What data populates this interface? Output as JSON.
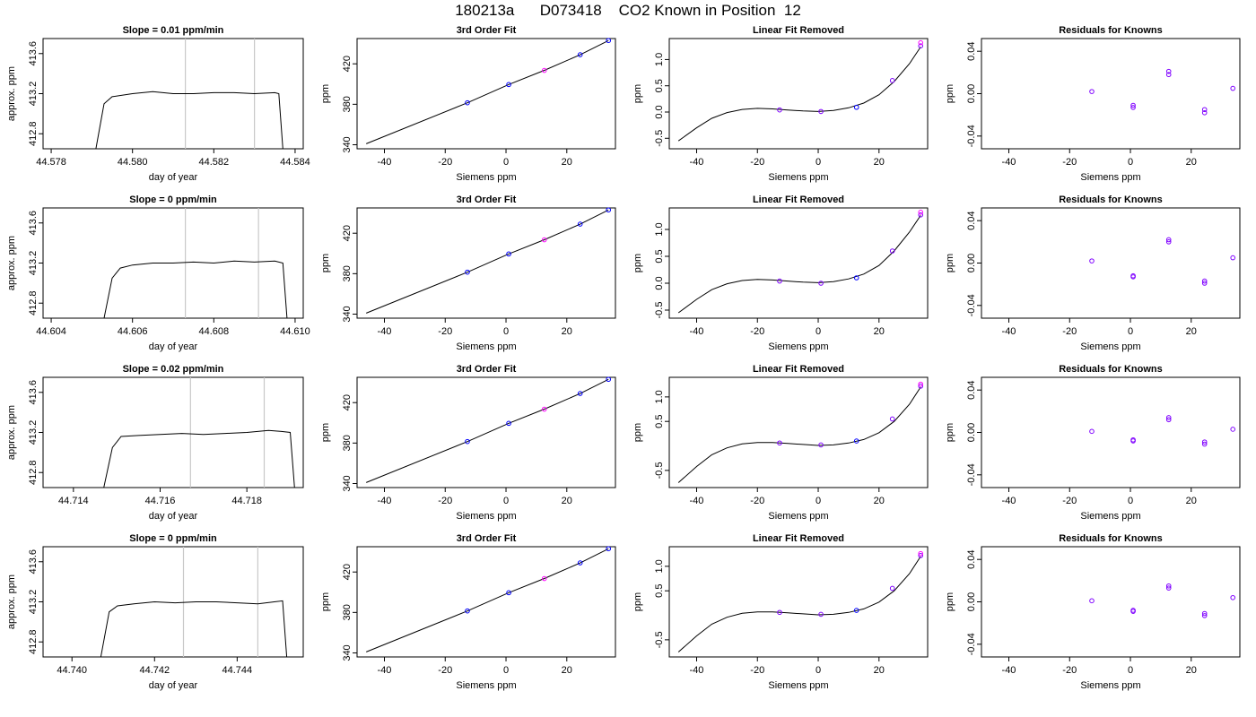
{
  "title": "180213a      D073418    CO2 Known in Position  12",
  "colors": {
    "trace": "#000000",
    "vline": "#c8c8c8",
    "pt_blue": "#0000ff",
    "pt_violet": "#ff00ff",
    "pt_purple": "#7f00ff"
  },
  "chart_data": [
    {
      "type": "line",
      "title": "Slope =  0.01  ppm/min",
      "xlabel": "day of year",
      "ylabel": "approx. ppm",
      "xlim": [
        44.5778,
        44.5842
      ],
      "ylim": [
        412.65,
        413.75
      ],
      "xticks": [
        44.578,
        44.58,
        44.582,
        44.584
      ],
      "xtick_labels": [
        "44.578",
        "44.580",
        "44.582",
        "44.584"
      ],
      "yticks": [
        412.8,
        413.2,
        413.6
      ],
      "ytick_labels": [
        "412.8",
        "413.2",
        "413.6"
      ],
      "vlines": [
        44.5813,
        44.583
      ],
      "x": [
        44.5791,
        44.5793,
        44.5795,
        44.58,
        44.5805,
        44.581,
        44.5815,
        44.582,
        44.5825,
        44.583,
        44.5835,
        44.5836,
        44.5837
      ],
      "y": [
        412.65,
        413.1,
        413.17,
        413.2,
        413.22,
        413.2,
        413.2,
        413.21,
        413.21,
        413.2,
        413.21,
        413.2,
        412.65
      ]
    },
    {
      "type": "line",
      "title": "3rd Order Fit",
      "xlabel": "Siemens ppm",
      "ylabel": "ppm",
      "xlim": [
        -49,
        36
      ],
      "ylim": [
        336,
        445
      ],
      "xticks": [
        -40,
        -20,
        0,
        20
      ],
      "yticks": [
        340,
        380,
        420
      ],
      "x": [
        -46,
        -12.7,
        0.9,
        12.6,
        24.4,
        33.7
      ],
      "y": [
        341,
        381.5,
        399.5,
        413.5,
        429,
        443
      ],
      "points": [
        {
          "x": -12.7,
          "y": 381.5,
          "c": "b"
        },
        {
          "x": 0.9,
          "y": 399.5,
          "c": "b"
        },
        {
          "x": 12.6,
          "y": 413.5,
          "c": "v"
        },
        {
          "x": 24.4,
          "y": 429,
          "c": "b"
        },
        {
          "x": 33.7,
          "y": 443,
          "c": "b"
        }
      ]
    },
    {
      "type": "line",
      "title": "Linear Fit Removed",
      "xlabel": "Siemens ppm",
      "ylabel": "ppm",
      "xlim": [
        -49,
        36
      ],
      "ylim": [
        -0.7,
        1.4
      ],
      "xticks": [
        -40,
        -20,
        0,
        20
      ],
      "yticks": [
        -0.5,
        0,
        0.5,
        1
      ],
      "ytick_labels": [
        "-0.5",
        "0.0",
        "0.5",
        "1.0"
      ],
      "x": [
        -46,
        -40,
        -35,
        -30,
        -25,
        -20,
        -15,
        -10,
        -5,
        0,
        5,
        10,
        15,
        20,
        25,
        30,
        33.7
      ],
      "y": [
        -0.55,
        -0.3,
        -0.12,
        -0.01,
        0.05,
        0.07,
        0.06,
        0.04,
        0.02,
        0.01,
        0.03,
        0.08,
        0.17,
        0.33,
        0.58,
        0.92,
        1.24
      ],
      "points": [
        {
          "x": -12.7,
          "y": 0.04,
          "c": "p"
        },
        {
          "x": 0.9,
          "y": 0.01,
          "c": "p"
        },
        {
          "x": 12.6,
          "y": 0.09,
          "c": "b"
        },
        {
          "x": 24.4,
          "y": 0.6,
          "c": "p"
        },
        {
          "x": 33.7,
          "y": 1.26,
          "c": "p"
        },
        {
          "x": 33.7,
          "y": 1.32,
          "c": "v"
        }
      ]
    },
    {
      "type": "scatter",
      "title": "Residuals for Knowns",
      "xlabel": "Siemens ppm",
      "ylabel": "ppm",
      "xlim": [
        -49,
        36
      ],
      "ylim": [
        -0.052,
        0.052
      ],
      "xticks": [
        -40,
        -20,
        0,
        20
      ],
      "yticks": [
        -0.04,
        0,
        0.04
      ],
      "ytick_labels": [
        "-0.04",
        "0.00",
        "0.04"
      ],
      "points": [
        {
          "x": -12.7,
          "y": 0.002,
          "c": "p"
        },
        {
          "x": 0.9,
          "y": -0.011,
          "c": "p"
        },
        {
          "x": 0.9,
          "y": -0.013,
          "c": "p"
        },
        {
          "x": 12.6,
          "y": 0.018,
          "c": "p"
        },
        {
          "x": 12.6,
          "y": 0.021,
          "c": "p"
        },
        {
          "x": 24.4,
          "y": -0.015,
          "c": "p"
        },
        {
          "x": 24.4,
          "y": -0.018,
          "c": "p"
        },
        {
          "x": 33.7,
          "y": 0.005,
          "c": "p"
        }
      ]
    },
    {
      "type": "line",
      "title": "Slope =  0  ppm/min",
      "xlabel": "day of year",
      "ylabel": "approx. ppm",
      "xlim": [
        44.6038,
        44.6102
      ],
      "ylim": [
        412.65,
        413.75
      ],
      "xticks": [
        44.604,
        44.606,
        44.608,
        44.61
      ],
      "xtick_labels": [
        "44.604",
        "44.606",
        "44.608",
        "44.610"
      ],
      "yticks": [
        412.8,
        413.2,
        413.6
      ],
      "ytick_labels": [
        "412.8",
        "413.2",
        "413.6"
      ],
      "vlines": [
        44.6073,
        44.6091
      ],
      "x": [
        44.6053,
        44.6055,
        44.6057,
        44.606,
        44.6065,
        44.607,
        44.6075,
        44.608,
        44.6085,
        44.609,
        44.6095,
        44.6097,
        44.6098
      ],
      "y": [
        412.65,
        413.05,
        413.15,
        413.18,
        413.2,
        413.2,
        413.21,
        413.2,
        413.22,
        413.21,
        413.22,
        413.2,
        412.65
      ]
    },
    {
      "type": "line",
      "title": "3rd Order Fit",
      "xlabel": "Siemens ppm",
      "ylabel": "ppm",
      "xlim": [
        -49,
        36
      ],
      "ylim": [
        336,
        445
      ],
      "xticks": [
        -40,
        -20,
        0,
        20
      ],
      "yticks": [
        340,
        380,
        420
      ],
      "x": [
        -46,
        -12.7,
        0.9,
        12.6,
        24.4,
        33.7
      ],
      "y": [
        341,
        381.5,
        399.5,
        413.5,
        429,
        443
      ],
      "points": [
        {
          "x": -12.7,
          "y": 381.5,
          "c": "b"
        },
        {
          "x": 0.9,
          "y": 399.5,
          "c": "b"
        },
        {
          "x": 12.6,
          "y": 413.5,
          "c": "v"
        },
        {
          "x": 24.4,
          "y": 429,
          "c": "b"
        },
        {
          "x": 33.7,
          "y": 443,
          "c": "b"
        }
      ]
    },
    {
      "type": "line",
      "title": "Linear Fit Removed",
      "xlabel": "Siemens ppm",
      "ylabel": "ppm",
      "xlim": [
        -49,
        36
      ],
      "ylim": [
        -0.65,
        1.4
      ],
      "xticks": [
        -40,
        -20,
        0,
        20
      ],
      "yticks": [
        -0.5,
        0,
        0.5,
        1
      ],
      "ytick_labels": [
        "-0.5",
        "0.0",
        "0.5",
        "1.0"
      ],
      "x": [
        -46,
        -40,
        -35,
        -30,
        -25,
        -20,
        -15,
        -10,
        -5,
        0,
        5,
        10,
        15,
        20,
        25,
        30,
        33.7
      ],
      "y": [
        -0.55,
        -0.3,
        -0.12,
        -0.01,
        0.05,
        0.07,
        0.06,
        0.04,
        0.02,
        0.01,
        0.03,
        0.08,
        0.17,
        0.33,
        0.6,
        0.95,
        1.26
      ],
      "points": [
        {
          "x": -12.7,
          "y": 0.04,
          "c": "p"
        },
        {
          "x": 0.9,
          "y": 0.0,
          "c": "p"
        },
        {
          "x": 12.6,
          "y": 0.1,
          "c": "b"
        },
        {
          "x": 24.4,
          "y": 0.6,
          "c": "p"
        },
        {
          "x": 33.7,
          "y": 1.27,
          "c": "p"
        },
        {
          "x": 33.7,
          "y": 1.32,
          "c": "v"
        }
      ]
    },
    {
      "type": "scatter",
      "title": "Residuals for Knowns",
      "xlabel": "Siemens ppm",
      "ylabel": "ppm",
      "xlim": [
        -49,
        36
      ],
      "ylim": [
        -0.052,
        0.052
      ],
      "xticks": [
        -40,
        -20,
        0,
        20
      ],
      "yticks": [
        -0.04,
        0,
        0.04
      ],
      "ytick_labels": [
        "-0.04",
        "0.00",
        "0.04"
      ],
      "points": [
        {
          "x": -12.7,
          "y": 0.002,
          "c": "p"
        },
        {
          "x": 0.9,
          "y": -0.012,
          "c": "p"
        },
        {
          "x": 0.9,
          "y": -0.013,
          "c": "p"
        },
        {
          "x": 12.6,
          "y": 0.02,
          "c": "p"
        },
        {
          "x": 12.6,
          "y": 0.022,
          "c": "p"
        },
        {
          "x": 24.4,
          "y": -0.017,
          "c": "p"
        },
        {
          "x": 24.4,
          "y": -0.019,
          "c": "p"
        },
        {
          "x": 33.7,
          "y": 0.005,
          "c": "p"
        }
      ]
    },
    {
      "type": "line",
      "title": "Slope =  0.02  ppm/min",
      "xlabel": "day of year",
      "ylabel": "approx. ppm",
      "xlim": [
        44.7133,
        44.7193
      ],
      "ylim": [
        412.65,
        413.75
      ],
      "xticks": [
        44.714,
        44.716,
        44.718
      ],
      "xtick_labels": [
        "44.714",
        "44.716",
        "44.718"
      ],
      "yticks": [
        412.8,
        413.2,
        413.6
      ],
      "ytick_labels": [
        "412.8",
        "413.2",
        "413.6"
      ],
      "vlines": [
        44.7167,
        44.7184
      ],
      "x": [
        44.7147,
        44.7149,
        44.7151,
        44.7155,
        44.716,
        44.7165,
        44.717,
        44.7175,
        44.718,
        44.7185,
        44.7188,
        44.719,
        44.7191
      ],
      "y": [
        412.65,
        413.05,
        413.16,
        413.17,
        413.18,
        413.19,
        413.18,
        413.19,
        413.2,
        413.22,
        413.21,
        413.2,
        412.65
      ]
    },
    {
      "type": "line",
      "title": "3rd Order Fit",
      "xlabel": "Siemens ppm",
      "ylabel": "ppm",
      "xlim": [
        -49,
        36
      ],
      "ylim": [
        336,
        445
      ],
      "xticks": [
        -40,
        -20,
        0,
        20
      ],
      "yticks": [
        340,
        380,
        420
      ],
      "x": [
        -46,
        -12.7,
        0.9,
        12.6,
        24.4,
        33.7
      ],
      "y": [
        341,
        381.5,
        399.5,
        413.5,
        429,
        443
      ],
      "points": [
        {
          "x": -12.7,
          "y": 381.5,
          "c": "b"
        },
        {
          "x": 0.9,
          "y": 399.5,
          "c": "b"
        },
        {
          "x": 12.6,
          "y": 413.5,
          "c": "v"
        },
        {
          "x": 24.4,
          "y": 429,
          "c": "b"
        },
        {
          "x": 33.7,
          "y": 443,
          "c": "b"
        }
      ]
    },
    {
      "type": "line",
      "title": "Linear Fit Removed",
      "xlabel": "Siemens ppm",
      "ylabel": "ppm",
      "xlim": [
        -49,
        36
      ],
      "ylim": [
        -0.85,
        1.4
      ],
      "xticks": [
        -40,
        -20,
        0,
        20
      ],
      "yticks": [
        -0.5,
        0.5,
        1
      ],
      "ytick_labels": [
        "-0.5",
        "0.5",
        "1.0"
      ],
      "x": [
        -46,
        -40,
        -35,
        -30,
        -25,
        -20,
        -15,
        -10,
        -5,
        0,
        5,
        10,
        15,
        20,
        25,
        30,
        33.7
      ],
      "y": [
        -0.75,
        -0.42,
        -0.18,
        -0.04,
        0.04,
        0.07,
        0.07,
        0.05,
        0.03,
        0.01,
        0.02,
        0.06,
        0.13,
        0.27,
        0.5,
        0.85,
        1.2
      ],
      "points": [
        {
          "x": -12.7,
          "y": 0.06,
          "c": "p"
        },
        {
          "x": 0.9,
          "y": 0.02,
          "c": "p"
        },
        {
          "x": 12.6,
          "y": 0.1,
          "c": "b"
        },
        {
          "x": 24.4,
          "y": 0.55,
          "c": "p"
        },
        {
          "x": 33.7,
          "y": 1.22,
          "c": "p"
        },
        {
          "x": 33.7,
          "y": 1.26,
          "c": "v"
        }
      ]
    },
    {
      "type": "scatter",
      "title": "Residuals for Knowns",
      "xlabel": "Siemens ppm",
      "ylabel": "ppm",
      "xlim": [
        -49,
        36
      ],
      "ylim": [
        -0.052,
        0.052
      ],
      "xticks": [
        -40,
        -20,
        0,
        20
      ],
      "yticks": [
        -0.04,
        0,
        0.04
      ],
      "ytick_labels": [
        "-0.04",
        "0.00",
        "0.04"
      ],
      "points": [
        {
          "x": -12.7,
          "y": 0.001,
          "c": "p"
        },
        {
          "x": 0.9,
          "y": -0.007,
          "c": "p"
        },
        {
          "x": 0.9,
          "y": -0.008,
          "c": "p"
        },
        {
          "x": 12.6,
          "y": 0.012,
          "c": "p"
        },
        {
          "x": 12.6,
          "y": 0.014,
          "c": "p"
        },
        {
          "x": 24.4,
          "y": -0.009,
          "c": "p"
        },
        {
          "x": 24.4,
          "y": -0.011,
          "c": "p"
        },
        {
          "x": 33.7,
          "y": 0.003,
          "c": "p"
        }
      ]
    },
    {
      "type": "line",
      "title": "Slope =  0  ppm/min",
      "xlabel": "day of year",
      "ylabel": "approx. ppm",
      "xlim": [
        44.7393,
        44.7456
      ],
      "ylim": [
        412.65,
        413.75
      ],
      "xticks": [
        44.74,
        44.742,
        44.744
      ],
      "xtick_labels": [
        "44.740",
        "44.742",
        "44.744"
      ],
      "yticks": [
        412.8,
        413.2,
        413.6
      ],
      "ytick_labels": [
        "412.8",
        "413.2",
        "413.6"
      ],
      "vlines": [
        44.7427,
        44.7445
      ],
      "x": [
        44.7407,
        44.7409,
        44.7411,
        44.7415,
        44.742,
        44.7425,
        44.743,
        44.7435,
        44.744,
        44.7445,
        44.7449,
        44.7451,
        44.7452
      ],
      "y": [
        412.65,
        413.1,
        413.16,
        413.18,
        413.2,
        413.19,
        413.2,
        413.2,
        413.19,
        413.18,
        413.2,
        413.21,
        412.65
      ]
    },
    {
      "type": "line",
      "title": "3rd Order Fit",
      "xlabel": "Siemens ppm",
      "ylabel": "ppm",
      "xlim": [
        -49,
        36
      ],
      "ylim": [
        336,
        445
      ],
      "xticks": [
        -40,
        -20,
        0,
        20
      ],
      "yticks": [
        340,
        380,
        420
      ],
      "x": [
        -46,
        -12.7,
        0.9,
        12.6,
        24.4,
        33.7
      ],
      "y": [
        341,
        381.5,
        399.5,
        413.5,
        429,
        443
      ],
      "points": [
        {
          "x": -12.7,
          "y": 381.5,
          "c": "b"
        },
        {
          "x": 0.9,
          "y": 399.5,
          "c": "b"
        },
        {
          "x": 12.6,
          "y": 413.5,
          "c": "v"
        },
        {
          "x": 24.4,
          "y": 429,
          "c": "b"
        },
        {
          "x": 33.7,
          "y": 443,
          "c": "b"
        }
      ]
    },
    {
      "type": "line",
      "title": "Linear Fit Removed",
      "xlabel": "Siemens ppm",
      "ylabel": "ppm",
      "xlim": [
        -49,
        36
      ],
      "ylim": [
        -0.85,
        1.4
      ],
      "xticks": [
        -40,
        -20,
        0,
        20
      ],
      "yticks": [
        -0.5,
        0.5,
        1
      ],
      "ytick_labels": [
        "-0.5",
        "0.5",
        "1.0"
      ],
      "x": [
        -46,
        -40,
        -35,
        -30,
        -25,
        -20,
        -15,
        -10,
        -5,
        0,
        5,
        10,
        15,
        20,
        25,
        30,
        33.7
      ],
      "y": [
        -0.75,
        -0.42,
        -0.18,
        -0.04,
        0.04,
        0.07,
        0.07,
        0.05,
        0.03,
        0.01,
        0.02,
        0.06,
        0.13,
        0.27,
        0.5,
        0.85,
        1.2
      ],
      "points": [
        {
          "x": -12.7,
          "y": 0.06,
          "c": "p"
        },
        {
          "x": 0.9,
          "y": 0.02,
          "c": "p"
        },
        {
          "x": 12.6,
          "y": 0.1,
          "c": "b"
        },
        {
          "x": 24.4,
          "y": 0.55,
          "c": "p"
        },
        {
          "x": 33.7,
          "y": 1.22,
          "c": "p"
        },
        {
          "x": 33.7,
          "y": 1.26,
          "c": "v"
        }
      ]
    },
    {
      "type": "scatter",
      "title": "Residuals for Knowns",
      "xlabel": "Siemens ppm",
      "ylabel": "ppm",
      "xlim": [
        -49,
        36
      ],
      "ylim": [
        -0.052,
        0.052
      ],
      "xticks": [
        -40,
        -20,
        0,
        20
      ],
      "yticks": [
        -0.04,
        0,
        0.04
      ],
      "ytick_labels": [
        "-0.04",
        "0.00",
        "0.04"
      ],
      "points": [
        {
          "x": -12.7,
          "y": 0.001,
          "c": "p"
        },
        {
          "x": 0.9,
          "y": -0.008,
          "c": "p"
        },
        {
          "x": 0.9,
          "y": -0.009,
          "c": "p"
        },
        {
          "x": 12.6,
          "y": 0.013,
          "c": "p"
        },
        {
          "x": 12.6,
          "y": 0.015,
          "c": "p"
        },
        {
          "x": 24.4,
          "y": -0.011,
          "c": "p"
        },
        {
          "x": 24.4,
          "y": -0.013,
          "c": "p"
        },
        {
          "x": 33.7,
          "y": 0.004,
          "c": "p"
        }
      ]
    }
  ]
}
